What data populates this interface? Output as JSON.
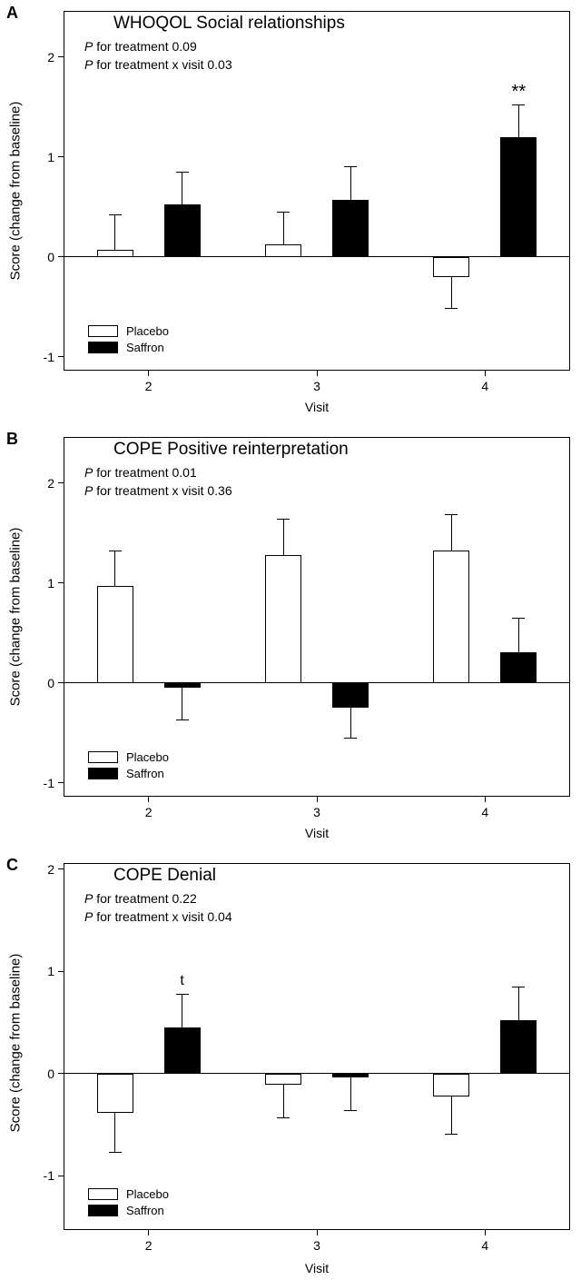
{
  "figure": {
    "series_names": [
      "Placebo",
      "Saffron"
    ],
    "colors": {
      "placebo": "#ffffff",
      "saffron": "#000000",
      "axis": "#000000"
    }
  },
  "chart_data": [
    {
      "type": "bar",
      "panel": "A",
      "title": "WHOQOL Social relationships",
      "p_lines": [
        "P for treatment 0.09",
        "P for treatment x visit 0.03"
      ],
      "categories": [
        "2",
        "3",
        "4"
      ],
      "xlabel": "Visit",
      "ylabel": "Score (change from baseline)",
      "yticks": [
        2,
        1,
        0,
        -1
      ],
      "ylim": [
        -1.13,
        2.45
      ],
      "grid": false,
      "legend_position": "lower-left",
      "series": [
        {
          "name": "Placebo",
          "color": "#ffffff",
          "values": [
            0.07,
            0.12,
            -0.2
          ],
          "errors": [
            0.35,
            0.33,
            0.32
          ]
        },
        {
          "name": "Saffron",
          "color": "#000000",
          "values": [
            0.52,
            0.57,
            1.2
          ],
          "errors": [
            0.33,
            0.33,
            0.32
          ]
        }
      ],
      "annotations": [
        {
          "series": "Saffron",
          "category": "4",
          "text": "**"
        }
      ]
    },
    {
      "type": "bar",
      "panel": "B",
      "title": "COPE Positive reinterpretation",
      "p_lines": [
        "P for treatment 0.01",
        "P for treatment x visit 0.36"
      ],
      "categories": [
        "2",
        "3",
        "4"
      ],
      "xlabel": "Visit",
      "ylabel": "Score (change from baseline)",
      "yticks": [
        2,
        1,
        0,
        -1
      ],
      "ylim": [
        -1.13,
        2.45
      ],
      "grid": false,
      "legend_position": "lower-left",
      "series": [
        {
          "name": "Placebo",
          "color": "#ffffff",
          "values": [
            0.97,
            1.28,
            1.32
          ],
          "errors": [
            0.35,
            0.36,
            0.36
          ]
        },
        {
          "name": "Saffron",
          "color": "#000000",
          "values": [
            -0.05,
            -0.25,
            0.31
          ],
          "errors": [
            0.32,
            0.3,
            0.34
          ]
        }
      ],
      "annotations": []
    },
    {
      "type": "bar",
      "panel": "C",
      "title": "COPE Denial",
      "p_lines": [
        "P for treatment 0.22",
        "P for treatment x visit 0.04"
      ],
      "categories": [
        "2",
        "3",
        "4"
      ],
      "xlabel": "Visit",
      "ylabel": "Score (change from baseline)",
      "yticks": [
        2,
        1,
        0,
        -1
      ],
      "ylim": [
        -1.52,
        2.05
      ],
      "grid": false,
      "legend_position": "lower-left",
      "series": [
        {
          "name": "Placebo",
          "color": "#ffffff",
          "values": [
            -0.38,
            -0.11,
            -0.22
          ],
          "errors": [
            0.39,
            0.32,
            0.37
          ]
        },
        {
          "name": "Saffron",
          "color": "#000000",
          "values": [
            0.45,
            -0.04,
            0.52
          ],
          "errors": [
            0.33,
            0.32,
            0.33
          ]
        }
      ],
      "annotations": [
        {
          "series": "Saffron",
          "category": "2",
          "text": "t"
        }
      ]
    }
  ]
}
